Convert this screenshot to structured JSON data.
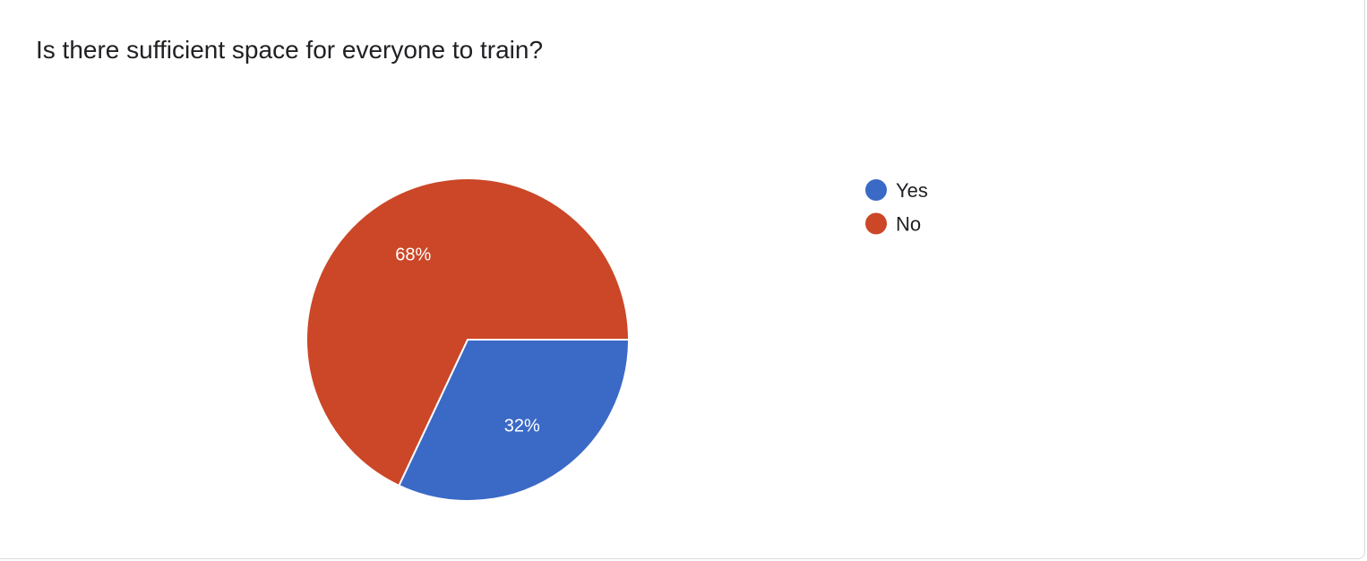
{
  "chart_data": {
    "type": "pie",
    "title": "Is there sufficient space for everyone to train?",
    "categories": [
      "Yes",
      "No"
    ],
    "values": [
      32,
      68
    ],
    "labels": [
      "32%",
      "68%"
    ],
    "colors": [
      "#3b69c6",
      "#cb4727"
    ],
    "legend_position": "right"
  }
}
